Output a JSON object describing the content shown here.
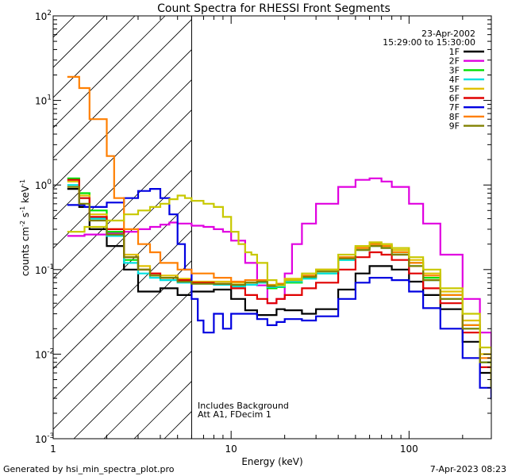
{
  "chart_data": {
    "type": "line",
    "title": "Count Spectra for RHESSI Front Segments",
    "xlabel": "Energy (keV)",
    "ylabel_parts": [
      "counts cm",
      "-2",
      " s",
      "-1",
      " keV",
      "-1"
    ],
    "x_scale": "log",
    "y_scale": "log",
    "xlim": [
      1,
      290
    ],
    "ylim": [
      0.001,
      100
    ],
    "x_ticks": [
      {
        "value": 1,
        "label": "1"
      },
      {
        "value": 10,
        "label": "10"
      },
      {
        "value": 100,
        "label": "100"
      }
    ],
    "y_ticks": [
      {
        "value": 0.001,
        "base": "10",
        "exp": "-3"
      },
      {
        "value": 0.01,
        "base": "10",
        "exp": "-2"
      },
      {
        "value": 0.1,
        "base": "10",
        "exp": "-1"
      },
      {
        "value": 1,
        "base": "10",
        "exp": "0"
      },
      {
        "value": 10,
        "base": "10",
        "exp": "1"
      },
      {
        "value": 100,
        "base": "10",
        "exp": "2"
      }
    ],
    "hatched_region_max_keV": 6,
    "header": {
      "date": "23-Apr-2002",
      "time_range": "15:29:00 to 15:30:00"
    },
    "annotation_lines": [
      "Includes Background",
      "Att A1, FDecim 1"
    ],
    "series": [
      {
        "name": "1F",
        "color": "#000000",
        "x": [
          1.2,
          1.4,
          1.6,
          2,
          2.5,
          3,
          3.5,
          4,
          5,
          6,
          8,
          10,
          12,
          14,
          16,
          18,
          20,
          25,
          30,
          40,
          50,
          60,
          70,
          80,
          100,
          120,
          150,
          200,
          250,
          290
        ],
        "y": [
          0.9,
          0.55,
          0.3,
          0.19,
          0.1,
          0.055,
          0.055,
          0.06,
          0.05,
          0.055,
          0.058,
          0.045,
          0.033,
          0.029,
          0.029,
          0.034,
          0.033,
          0.03,
          0.034,
          0.058,
          0.09,
          0.11,
          0.11,
          0.1,
          0.072,
          0.05,
          0.034,
          0.014,
          0.006,
          0.003
        ]
      },
      {
        "name": "2F",
        "color": "#e000e0",
        "x": [
          1.2,
          1.5,
          2,
          2.5,
          3,
          3.5,
          4,
          4.5,
          5,
          6,
          7,
          8,
          9,
          10,
          12,
          14,
          16,
          18,
          20,
          22,
          25,
          30,
          40,
          50,
          60,
          70,
          80,
          100,
          120,
          150,
          200,
          250,
          290
        ],
        "y": [
          0.25,
          0.26,
          0.27,
          0.28,
          0.3,
          0.32,
          0.34,
          0.36,
          0.35,
          0.33,
          0.32,
          0.3,
          0.28,
          0.22,
          0.12,
          0.065,
          0.04,
          0.045,
          0.09,
          0.2,
          0.35,
          0.6,
          0.95,
          1.15,
          1.2,
          1.1,
          0.95,
          0.6,
          0.35,
          0.15,
          0.045,
          0.018,
          0.009
        ]
      },
      {
        "name": "3F",
        "color": "#00e000",
        "x": [
          1.2,
          1.4,
          1.6,
          2,
          2.5,
          3,
          3.5,
          4,
          5,
          6,
          8,
          10,
          12,
          14,
          16,
          18,
          20,
          25,
          30,
          40,
          50,
          60,
          70,
          80,
          100,
          120,
          150,
          200,
          250,
          290
        ],
        "y": [
          1.2,
          0.8,
          0.5,
          0.28,
          0.13,
          0.1,
          0.085,
          0.08,
          0.075,
          0.07,
          0.068,
          0.065,
          0.07,
          0.07,
          0.06,
          0.062,
          0.07,
          0.08,
          0.09,
          0.13,
          0.18,
          0.2,
          0.19,
          0.16,
          0.12,
          0.08,
          0.05,
          0.022,
          0.008,
          0.004
        ]
      },
      {
        "name": "4F",
        "color": "#00e0e0",
        "x": [
          1.2,
          1.4,
          1.6,
          2,
          2.5,
          3,
          3.5,
          4,
          5,
          6,
          8,
          10,
          12,
          14,
          16,
          18,
          20,
          25,
          30,
          40,
          50,
          60,
          70,
          80,
          100,
          120,
          150,
          200,
          250,
          290
        ],
        "y": [
          1.0,
          0.7,
          0.4,
          0.25,
          0.12,
          0.09,
          0.08,
          0.075,
          0.07,
          0.068,
          0.066,
          0.063,
          0.066,
          0.07,
          0.062,
          0.063,
          0.072,
          0.078,
          0.09,
          0.13,
          0.17,
          0.19,
          0.18,
          0.15,
          0.11,
          0.075,
          0.045,
          0.02,
          0.008,
          0.004
        ]
      },
      {
        "name": "5F",
        "color": "#e0c000",
        "x": [
          1.2,
          1.4,
          1.6,
          2,
          2.5,
          3,
          3.5,
          4,
          5,
          6,
          8,
          10,
          12,
          14,
          16,
          18,
          20,
          25,
          30,
          40,
          50,
          60,
          70,
          80,
          100,
          120,
          150,
          200,
          250,
          290
        ],
        "y": [
          1.1,
          0.75,
          0.45,
          0.3,
          0.15,
          0.11,
          0.09,
          0.085,
          0.078,
          0.072,
          0.072,
          0.07,
          0.075,
          0.075,
          0.066,
          0.068,
          0.078,
          0.085,
          0.1,
          0.14,
          0.19,
          0.21,
          0.2,
          0.17,
          0.13,
          0.09,
          0.055,
          0.025,
          0.01,
          0.005
        ]
      },
      {
        "name": "6F",
        "color": "#e00000",
        "x": [
          1.2,
          1.4,
          1.6,
          2,
          2.5,
          3,
          3.5,
          4,
          5,
          6,
          8,
          10,
          12,
          14,
          16,
          18,
          20,
          25,
          30,
          40,
          50,
          60,
          70,
          80,
          100,
          120,
          150,
          200,
          250,
          290
        ],
        "y": [
          1.15,
          0.7,
          0.42,
          0.3,
          0.14,
          0.1,
          0.09,
          0.08,
          0.075,
          0.07,
          0.068,
          0.06,
          0.05,
          0.045,
          0.04,
          0.045,
          0.05,
          0.06,
          0.07,
          0.1,
          0.14,
          0.16,
          0.15,
          0.13,
          0.09,
          0.06,
          0.04,
          0.018,
          0.007,
          0.0035
        ]
      },
      {
        "name": "7F",
        "color": "#0000e0",
        "x": [
          1.2,
          1.5,
          2,
          2.5,
          3,
          3.5,
          4,
          4.5,
          5,
          5.5,
          6,
          6.5,
          7,
          8,
          9,
          10,
          12,
          14,
          16,
          18,
          20,
          25,
          30,
          40,
          50,
          60,
          70,
          80,
          100,
          120,
          150,
          200,
          250,
          290
        ],
        "y": [
          0.58,
          0.55,
          0.62,
          0.7,
          0.85,
          0.9,
          0.7,
          0.45,
          0.2,
          0.1,
          0.045,
          0.025,
          0.018,
          0.03,
          0.02,
          0.03,
          0.03,
          0.026,
          0.022,
          0.024,
          0.026,
          0.025,
          0.028,
          0.045,
          0.07,
          0.08,
          0.08,
          0.075,
          0.055,
          0.035,
          0.02,
          0.009,
          0.004,
          0.003
        ]
      },
      {
        "name": "8F",
        "color": "#ff7f00",
        "x": [
          1.2,
          1.4,
          1.6,
          2,
          2.2,
          2.5,
          3,
          3.5,
          4,
          5,
          6,
          8,
          10,
          12,
          14,
          16,
          18,
          20,
          25,
          30,
          40,
          50,
          60,
          70,
          80,
          100,
          120,
          150,
          200,
          250,
          290
        ],
        "y": [
          19,
          14,
          6,
          2.2,
          0.7,
          0.3,
          0.2,
          0.16,
          0.12,
          0.1,
          0.09,
          0.08,
          0.072,
          0.075,
          0.075,
          0.065,
          0.068,
          0.075,
          0.085,
          0.1,
          0.14,
          0.18,
          0.2,
          0.19,
          0.16,
          0.12,
          0.085,
          0.05,
          0.022,
          0.009,
          0.0045
        ]
      },
      {
        "name": "9F",
        "color": "#808000",
        "x": [
          1.2,
          1.4,
          1.6,
          2,
          2.5,
          3,
          3.5,
          4,
          5,
          6,
          8,
          10,
          12,
          14,
          16,
          18,
          20,
          25,
          30,
          40,
          50,
          60,
          70,
          80,
          100,
          120,
          150,
          200,
          250,
          290
        ],
        "y": [
          0.95,
          0.6,
          0.38,
          0.26,
          0.14,
          0.1,
          0.085,
          0.08,
          0.072,
          0.068,
          0.068,
          0.066,
          0.07,
          0.072,
          0.064,
          0.066,
          0.075,
          0.082,
          0.095,
          0.135,
          0.17,
          0.19,
          0.18,
          0.15,
          0.11,
          0.075,
          0.045,
          0.02,
          0.008,
          0.004
        ]
      },
      {
        "name": "",
        "color": "#c8c800",
        "x": [
          1.2,
          1.5,
          2,
          2.5,
          3,
          3.5,
          4,
          4.5,
          5,
          5.5,
          6,
          7,
          8,
          9,
          10,
          11,
          12,
          13,
          14,
          16,
          18,
          20,
          25,
          30,
          40,
          50,
          60,
          70,
          80,
          100,
          120,
          150,
          200,
          250,
          290
        ],
        "y": [
          0.28,
          0.32,
          0.38,
          0.45,
          0.5,
          0.55,
          0.6,
          0.68,
          0.75,
          0.7,
          0.65,
          0.6,
          0.55,
          0.42,
          0.28,
          0.2,
          0.16,
          0.15,
          0.12,
          0.075,
          0.065,
          0.075,
          0.09,
          0.1,
          0.15,
          0.19,
          0.21,
          0.2,
          0.18,
          0.14,
          0.1,
          0.06,
          0.03,
          0.012,
          0.006
        ]
      }
    ]
  },
  "footer": {
    "left": "Generated by hsi_min_spectra_plot.pro",
    "right": "7-Apr-2023 08:23"
  }
}
